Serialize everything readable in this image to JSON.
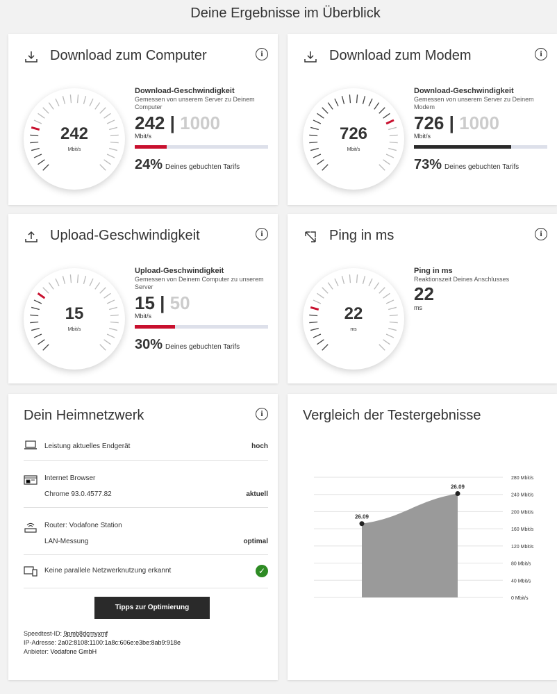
{
  "page_title": "Deine Ergebnisse im Überblick",
  "colors": {
    "accent_red": "#c8102e",
    "dark_bar": "#2a2a2a",
    "bar_bg": "#dde0ea",
    "check_green": "#2e8b24"
  },
  "download_computer": {
    "title": "Download zum Computer",
    "icon": "download-icon",
    "gauge_value": "242",
    "gauge_unit": "Mbit/s",
    "stat_title": "Download-Geschwindigkeit",
    "stat_desc": "Gemessen von unserem Server zu Deinem Computer",
    "value": "242",
    "separator": "|",
    "max": "1000",
    "unit": "Mbit/s",
    "progress": 0.24,
    "percent": "24%",
    "percent_label": "Deines gebuchten Tarifs"
  },
  "download_modem": {
    "title": "Download zum Modem",
    "icon": "download-icon",
    "gauge_value": "726",
    "gauge_unit": "Mbit/s",
    "stat_title": "Download-Geschwindigkeit",
    "stat_desc": "Gemessen von unserem Server zu Deinem Modem",
    "value": "726",
    "separator": "|",
    "max": "1000",
    "unit": "Mbit/s",
    "progress": 0.73,
    "percent": "73%",
    "percent_label": "Deines gebuchten Tarifs"
  },
  "upload": {
    "title": "Upload-Geschwindigkeit",
    "icon": "upload-icon",
    "gauge_value": "15",
    "gauge_unit": "Mbit/s",
    "stat_title": "Upload-Geschwindigkeit",
    "stat_desc": "Gemessen von Deinem Computer zu unserem Server",
    "value": "15",
    "separator": "|",
    "max": "50",
    "unit": "Mbit/s",
    "progress": 0.3,
    "percent": "30%",
    "percent_label": "Deines gebuchten Tarifs"
  },
  "ping": {
    "title": "Ping in ms",
    "icon": "expand-arrows-icon",
    "gauge_value": "22",
    "gauge_unit": "ms",
    "stat_title": "Ping in ms",
    "stat_desc": "Reaktionszeit Deines Anschlusses",
    "value": "22",
    "unit": "ms"
  },
  "home_network": {
    "title": "Dein Heimnetzwerk",
    "rows": [
      {
        "icon": "laptop-icon",
        "label": "Leistung aktuelles Endgerät",
        "value": "hoch"
      },
      {
        "icon": "browser-icon",
        "label": "Internet Browser",
        "sublabel": "Chrome 93.0.4577.82",
        "value": "aktuell"
      },
      {
        "icon": "router-icon",
        "label": "Router: Vodafone Station",
        "sublabel": "LAN-Messung",
        "value": "optimal"
      },
      {
        "icon": "devices-icon",
        "label": "Keine parallele Netzwerknutzung erkannt",
        "value_icon": "check-icon"
      }
    ],
    "button": "Tipps zur Optimierung",
    "speedtest_id_label": "Speedtest-ID:",
    "speedtest_id": "9pmb8dcmyxmf",
    "ip_label": "IP-Adresse:",
    "ip": "2a02:8108:1100:1a8c:606e:e3be:8ab9:918e",
    "provider_label": "Anbieter:",
    "provider": "Vodafone GmbH"
  },
  "chart_data": {
    "type": "area",
    "title": "Vergleich der Testergebnisse",
    "x": [
      "26.09",
      "26.09"
    ],
    "values": [
      172,
      242
    ],
    "point_labels": [
      "26.09",
      "26.09"
    ],
    "ylim": [
      0,
      280
    ],
    "y_ticks": [
      "0 Mbit/s",
      "40 Mbit/s",
      "80 Mbit/s",
      "120 Mbit/s",
      "160 Mbit/s",
      "200 Mbit/s",
      "240 Mbit/s",
      "280 Mbit/s"
    ],
    "tick_values": [
      0,
      40,
      80,
      120,
      160,
      200,
      240,
      280
    ],
    "grid": true,
    "color": "#9a9a9a"
  }
}
